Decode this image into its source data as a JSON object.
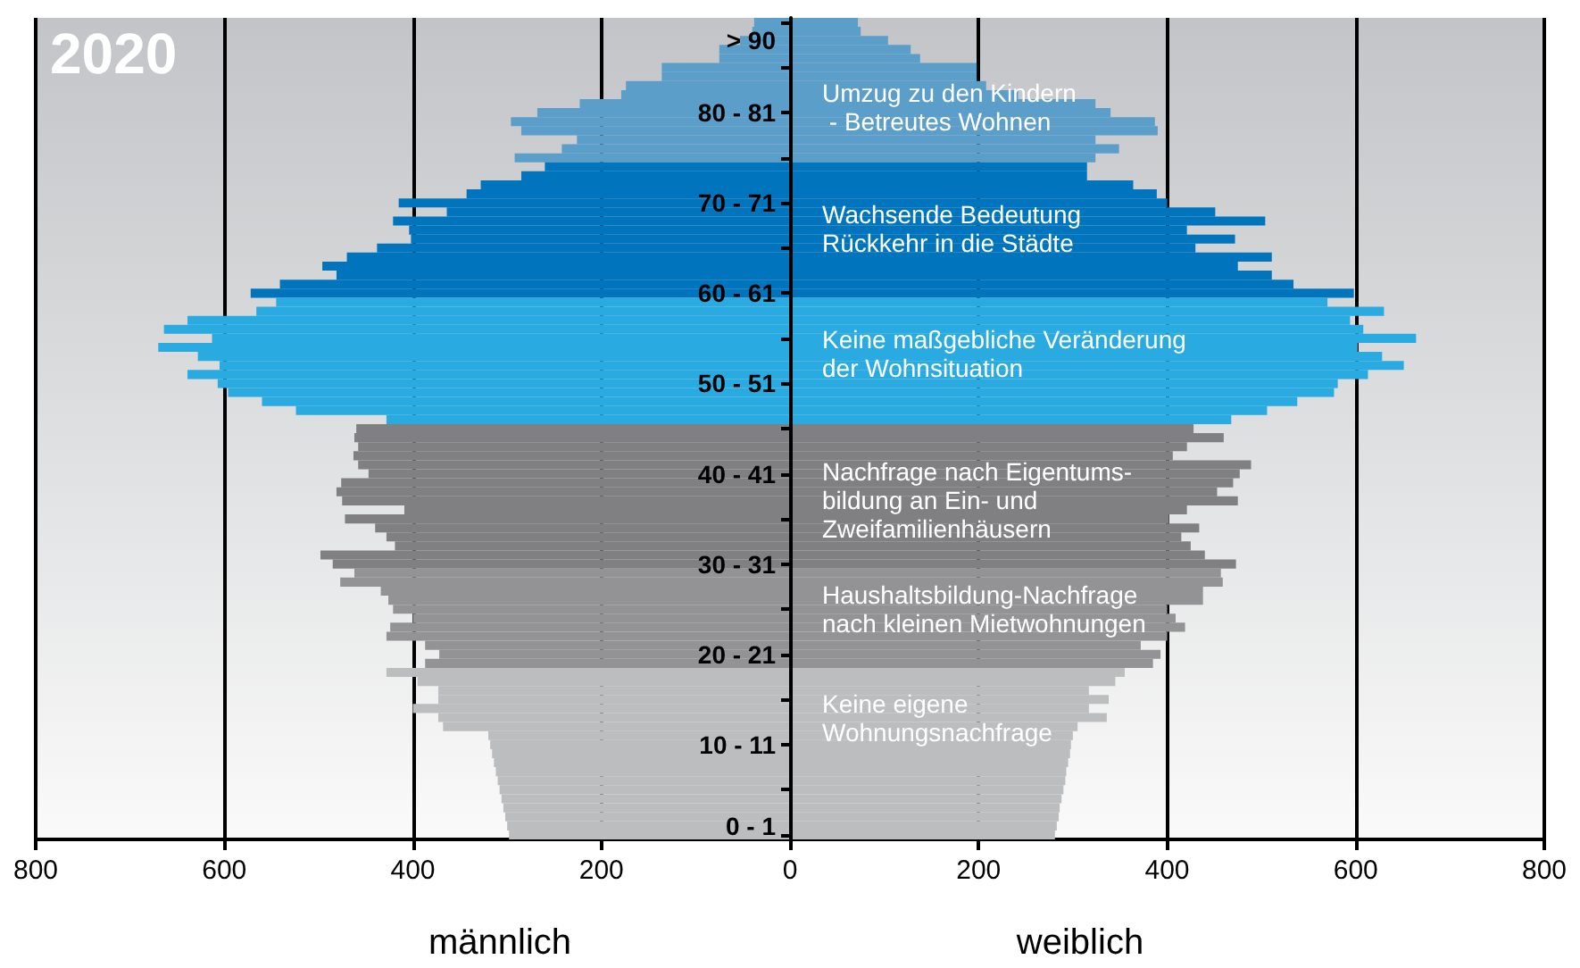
{
  "chart_data": {
    "type": "bar",
    "orientation": "horizontal",
    "title": "2020",
    "stacked": true,
    "categories": [
      null,
      null,
      "> 90",
      null,
      null,
      null,
      null,
      null,
      null,
      null,
      "80 - 81",
      null,
      null,
      null,
      null,
      null,
      null,
      null,
      null,
      null,
      "70 - 71",
      null,
      null,
      null,
      null,
      null,
      null,
      null,
      null,
      null,
      "60 - 61",
      null,
      null,
      null,
      null,
      null,
      null,
      null,
      null,
      null,
      "50 - 51",
      null,
      null,
      null,
      null,
      null,
      null,
      null,
      null,
      null,
      "40 - 41",
      null,
      null,
      null,
      null,
      null,
      null,
      null,
      null,
      null,
      "30 - 31",
      null,
      null,
      null,
      null,
      null,
      null,
      null,
      null,
      null,
      "20 - 21",
      null,
      null,
      null,
      null,
      null,
      null,
      null,
      null,
      null,
      "10 - 11",
      null,
      null,
      null,
      null,
      null,
      null,
      null,
      null,
      "0 - 1",
      null
    ],
    "series": [
      {
        "name": "männlich",
        "values": [
          -38,
          -40,
          -53,
          -75,
          -75,
          -136,
          -136,
          -174,
          -179,
          -223,
          -268,
          -296,
          -285,
          -226,
          -242,
          -292,
          -260,
          -285,
          -328,
          -343,
          -415,
          -364,
          -421,
          -404,
          -402,
          -438,
          -470,
          -496,
          -481,
          -541,
          -572,
          -545,
          -566,
          -639,
          -664,
          -613,
          -670,
          -628,
          -605,
          -639,
          -607,
          -596,
          -560,
          -524,
          -428,
          -460,
          -462,
          -458,
          -463,
          -458,
          -447,
          -476,
          -481,
          -475,
          -409,
          -472,
          -440,
          -428,
          -419,
          -498,
          -485,
          -462,
          -477,
          -434,
          -426,
          -421,
          -400,
          -424,
          -428,
          -387,
          -372,
          -387,
          -428,
          -395,
          -373,
          -373,
          -400,
          -373,
          -368,
          -320,
          -318,
          -316,
          -314,
          -312,
          -310,
          -308,
          -306,
          -304,
          -302,
          -300,
          -298
        ],
        "colors": [
          "#5b9ec9",
          "#5b9ec9",
          "#5b9ec9",
          "#5b9ec9",
          "#5b9ec9",
          "#5b9ec9",
          "#5b9ec9",
          "#5b9ec9",
          "#5b9ec9",
          "#5b9ec9",
          "#5b9ec9",
          "#5b9ec9",
          "#5b9ec9",
          "#5b9ec9",
          "#5b9ec9",
          "#5b9ec9",
          "#0075be",
          "#0075be",
          "#0075be",
          "#0075be",
          "#0075be",
          "#0075be",
          "#0075be",
          "#0075be",
          "#0075be",
          "#0075be",
          "#0075be",
          "#0075be",
          "#0075be",
          "#0075be",
          "#0075be",
          "#29abe2",
          "#29abe2",
          "#29abe2",
          "#29abe2",
          "#29abe2",
          "#29abe2",
          "#29abe2",
          "#29abe2",
          "#29abe2",
          "#29abe2",
          "#29abe2",
          "#29abe2",
          "#29abe2",
          "#29abe2",
          "#808083",
          "#808083",
          "#808083",
          "#808083",
          "#808083",
          "#808083",
          "#808083",
          "#808083",
          "#808083",
          "#808083",
          "#808083",
          "#808083",
          "#808083",
          "#808083",
          "#808083",
          "#808083",
          "#939396",
          "#939396",
          "#939396",
          "#939396",
          "#939396",
          "#939396",
          "#939396",
          "#939396",
          "#939396",
          "#939396",
          "#939396",
          "#bcbdbf",
          "#bcbdbf",
          "#bcbdbf",
          "#bcbdbf",
          "#bcbdbf",
          "#bcbdbf",
          "#bcbdbf",
          "#bcbdbf",
          "#bcbdbf",
          "#bcbdbf",
          "#bcbdbf",
          "#bcbdbf",
          "#bcbdbf",
          "#bcbdbf",
          "#bcbdbf",
          "#bcbdbf",
          "#bcbdbf",
          "#bcbdbf",
          "#bcbdbf"
        ]
      },
      {
        "name": "weiblich",
        "values": [
          72,
          75,
          104,
          128,
          138,
          198,
          198,
          208,
          242,
          324,
          340,
          387,
          390,
          324,
          349,
          324,
          315,
          315,
          364,
          389,
          400,
          451,
          504,
          421,
          472,
          430,
          511,
          475,
          511,
          534,
          598,
          570,
          630,
          594,
          608,
          664,
          602,
          628,
          651,
          613,
          581,
          577,
          538,
          506,
          468,
          428,
          460,
          421,
          406,
          489,
          477,
          470,
          453,
          475,
          421,
          402,
          434,
          415,
          425,
          440,
          473,
          457,
          459,
          438,
          438,
          400,
          409,
          419,
          400,
          372,
          393,
          385,
          355,
          345,
          317,
          338,
          317,
          336,
          305,
          300,
          298,
          297,
          295,
          293,
          292,
          290,
          288,
          286,
          285,
          283,
          281
        ],
        "colors": [
          "#5b9ec9",
          "#5b9ec9",
          "#5b9ec9",
          "#5b9ec9",
          "#5b9ec9",
          "#5b9ec9",
          "#5b9ec9",
          "#5b9ec9",
          "#5b9ec9",
          "#5b9ec9",
          "#5b9ec9",
          "#5b9ec9",
          "#5b9ec9",
          "#5b9ec9",
          "#5b9ec9",
          "#5b9ec9",
          "#0075be",
          "#0075be",
          "#0075be",
          "#0075be",
          "#0075be",
          "#0075be",
          "#0075be",
          "#0075be",
          "#0075be",
          "#0075be",
          "#0075be",
          "#0075be",
          "#0075be",
          "#0075be",
          "#0075be",
          "#29abe2",
          "#29abe2",
          "#29abe2",
          "#29abe2",
          "#29abe2",
          "#29abe2",
          "#29abe2",
          "#29abe2",
          "#29abe2",
          "#29abe2",
          "#29abe2",
          "#29abe2",
          "#29abe2",
          "#29abe2",
          "#808083",
          "#808083",
          "#808083",
          "#808083",
          "#808083",
          "#808083",
          "#808083",
          "#808083",
          "#808083",
          "#808083",
          "#808083",
          "#808083",
          "#808083",
          "#808083",
          "#808083",
          "#808083",
          "#939396",
          "#939396",
          "#939396",
          "#939396",
          "#939396",
          "#939396",
          "#939396",
          "#939396",
          "#939396",
          "#939396",
          "#939396",
          "#bcbdbf",
          "#bcbdbf",
          "#bcbdbf",
          "#bcbdbf",
          "#bcbdbf",
          "#bcbdbf",
          "#bcbdbf",
          "#bcbdbf",
          "#bcbdbf",
          "#bcbdbf",
          "#bcbdbf",
          "#bcbdbf",
          "#bcbdbf",
          "#bcbdbf",
          "#bcbdbf",
          "#bcbdbf",
          "#bcbdbf",
          "#bcbdbf",
          "#bcbdbf"
        ]
      }
    ],
    "xlim": [
      -800,
      800
    ],
    "xticks": [
      {
        "value": -800,
        "label": "800"
      },
      {
        "value": -600,
        "label": "600"
      },
      {
        "value": -400,
        "label": "400"
      },
      {
        "value": -200,
        "label": "200"
      },
      0,
      200,
      400,
      600,
      800
    ],
    "grid": "x",
    "legend": false,
    "annotations": [
      "Umzug zu den Kindern\n - Betreutes Wohnen",
      "Wachsende Bedeutung\nRückkehr in die Städte",
      "Keine maßgebliche Veränderung\nder Wohnsituation",
      "Nachfrage nach Eigentums-\nbildung an Ein- und\nZweifamilienhäusern",
      "Haushaltsbildung-Nachfrage\nnach kleinen Mietwohnungen",
      "Keine eigene\nWohnungsnachfrage"
    ]
  }
}
